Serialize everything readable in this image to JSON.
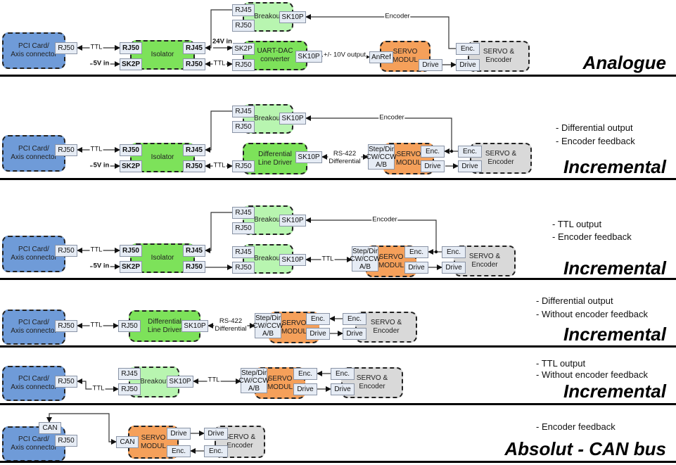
{
  "colors": {
    "pci": "#6f9bd8",
    "isolator": "#7de25a",
    "breakout": "#b8f5b0",
    "servo": "#f5a05a",
    "motor": "#d9d9d9",
    "port": "#e6ecf5"
  },
  "sections": [
    {
      "title": "Analogue",
      "notes": [],
      "blocks": [
        "PCI Card/\nAxis connector",
        "Isolator",
        "Breakout",
        "UART-DAC\nconverter",
        "SERVO\nMODUL",
        "SERVO &\nEncoder"
      ],
      "ports": [
        "RJ50",
        "RJ50",
        "SK2P",
        "RJ45",
        "RJ50",
        "RJ45",
        "RJ50",
        "SK10P",
        "SK2P",
        "RJ50",
        "SK10P",
        "AnRef",
        "Drive",
        "Enc.",
        "Drive"
      ],
      "labels": [
        "TTL",
        "5V in",
        "24V in",
        "TTL",
        "+/- 10V output",
        "Encoder"
      ]
    },
    {
      "title": "Incremental",
      "notes": [
        "- Differential output",
        "- Encoder feedback"
      ],
      "blocks": [
        "PCI Card/\nAxis connector",
        "Isolator",
        "Breakout",
        "Differential\nLine Driver",
        "SERVO\nMODUL",
        "SERVO &\nEncoder"
      ],
      "ports": [
        "RJ50",
        "RJ50",
        "SK2P",
        "RJ45",
        "RJ50",
        "RJ45",
        "RJ50",
        "SK10P",
        "RJ50",
        "SK10P",
        "Step/Dir\nCW/CCW\nA/B",
        "Enc.",
        "Drive",
        "Enc.",
        "Drive"
      ],
      "labels": [
        "TTL",
        "5V in",
        "TTL",
        "RS-422\nDifferential",
        "Encoder"
      ]
    },
    {
      "title": "Incremental",
      "notes": [
        "- TTL output",
        "- Encoder feedback"
      ],
      "blocks": [
        "PCI Card/\nAxis connector",
        "Isolator",
        "Breakout",
        "Breakout",
        "SERVO\nMODUL",
        "SERVO &\nEncoder"
      ],
      "ports": [
        "RJ50",
        "RJ50",
        "SK2P",
        "RJ45",
        "RJ50",
        "RJ45",
        "RJ50",
        "SK10P",
        "RJ45",
        "RJ50",
        "SK10P",
        "Step/Dir\nCW/CCW\nA/B",
        "Enc.",
        "Drive",
        "Enc.",
        "Drive"
      ],
      "labels": [
        "TTL",
        "5V in",
        "TTL",
        "Encoder"
      ]
    },
    {
      "title": "Incremental",
      "notes": [
        "- Differential output",
        "- Without encoder feedback"
      ],
      "blocks": [
        "PCI Card/\nAxis connector",
        "Differential\nLine Driver",
        "SERVO\nMODUL",
        "SERVO &\nEncoder"
      ],
      "ports": [
        "RJ50",
        "RJ50",
        "SK10P",
        "Step/Dir\nCW/CCW\nA/B",
        "Enc.",
        "Drive",
        "Enc.",
        "Drive"
      ],
      "labels": [
        "TTL",
        "RS-422\nDifferential"
      ]
    },
    {
      "title": "Incremental",
      "notes": [
        "- TTL output",
        "- Without encoder feedback"
      ],
      "blocks": [
        "PCI Card/\nAxis connector",
        "Breakout",
        "SERVO\nMODUL",
        "SERVO &\nEncoder"
      ],
      "ports": [
        "RJ50",
        "RJ45",
        "RJ50",
        "SK10P",
        "Step/Dir\nCW/CCW\nA/B",
        "Enc.",
        "Drive",
        "Enc.",
        "Drive"
      ],
      "labels": [
        "TTL",
        "TTL"
      ]
    },
    {
      "title": "Absolut - CAN bus",
      "notes": [
        "- Encoder feedback"
      ],
      "blocks": [
        "PCI Card/\nAxis connector",
        "SERVO\nMODUL",
        "SERVO &\nEncoder"
      ],
      "ports": [
        "CAN",
        "RJ50",
        "CAN",
        "Drive",
        "Enc.",
        "Drive",
        "Enc."
      ],
      "labels": []
    }
  ]
}
